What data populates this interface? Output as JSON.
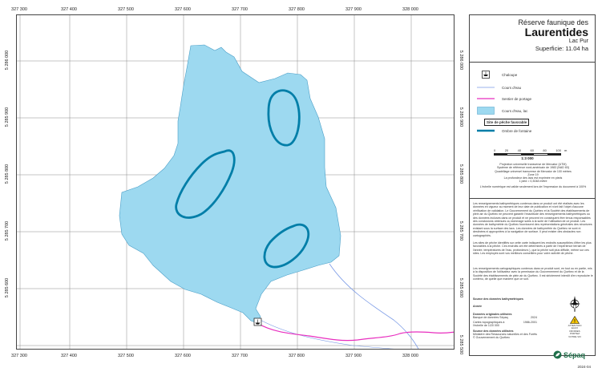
{
  "map": {
    "x_ticks": [
      "327 300",
      "327 400",
      "327 500",
      "327 600",
      "327 700",
      "327 800",
      "327 900",
      "328 000"
    ],
    "y_ticks": [
      "5 286 000",
      "5 285 900",
      "5 285 800",
      "5 285 700",
      "5 285 600"
    ],
    "bottom_right_tick": "5 285 500",
    "colors": {
      "lake_fill": "#9dd9f0",
      "lake_stroke": "#4a9ec7",
      "fish_zone": "#007ea8",
      "portage": "#e82fbf",
      "stream": "#7a9ae6"
    }
  },
  "header": {
    "line1": "Réserve faunique des",
    "line2": "Laurentides",
    "line3": "Lac Pur",
    "superficie_label": "Superficie:",
    "superficie_value": "11.04 ha"
  },
  "legend": {
    "items": [
      {
        "label": "Chaloupe",
        "icon": "boat-icon"
      },
      {
        "label": "Cours d'eau",
        "icon": "stream-line"
      },
      {
        "label": "Sentier de portage",
        "icon": "portage-line"
      },
      {
        "label": "Cours d'eau, lac",
        "icon": "lake-fill"
      },
      {
        "label": "Site de pêche favorable",
        "icon": "fishing-site-box"
      },
      {
        "label": "Ombre de fontaine",
        "icon": "fish-zone-line"
      }
    ]
  },
  "scale": {
    "ticks": [
      "0",
      "20",
      "40",
      "60",
      "80",
      "100"
    ],
    "unit": "m",
    "ratio": "1:3 000"
  },
  "projection": {
    "lines": [
      "Projection universelle transverse de Mercator (UTM)",
      "Système de référence nord-américain de 1983 (NAD 83)",
      "Quadrillage universel transverse de Mercator de 100 mètres",
      "Zone 19",
      "La profondeur des lacs est exprimée en pieds",
      "1 pied = 0,3048 mètre"
    ],
    "note": "L'échelle numérique est valide seulement lors de l'impression du document à 100%"
  },
  "paragraphs": [
    "Les renseignements bathymétriques contenus dans ce produit ont été réalisés avec les données en vigueur au moment de leur date de publication et n'ont fait l'objet d'aucune vérification de validation. Le Gouvernement du Québec et la Société des établissements de plein air du Québec ne peuvent garantir l'exactitude des renseignements bathymétriques ou des données incluses dans ce produit et ne peuvent en conséquent être tenus responsables des conclusions obtenues ou dommage subis à la suite de l'utilisation de ce produit. Les données de bathymétrie du Québec fournissent des représentations générales des structures existant sous la surface des lacs. Les données de bathymétrie du Québec ne sont ni destinées ni appropriées à la navigation de surface. Il peut exister des obstacles non cartographiés.",
    "Les sites de pêche identifiés sur cette carte indiquent les endroits susceptibles d'être les plus favorables à la pêche. Ces endroits ont été déterminés à partir de l'expérience terrain de l'année, températures de l'eau, profondeurs ), que la pêche soit plus difficile, même sur ces sites. Les employés sont vos meilleurs conseillers pour votre activité de pêche.",
    "Les renseignements cartographiques contenus dans ce produit sont, en tout ou en partie, mis à la disposition de l'utilisateur avec la permission du Gouvernement du Québec et de la Société des établissements de plein air du Québec. Il est strictement interdit d'en reproduire le contenu, de quelle que manière que ce soit."
  ],
  "sources": {
    "bathy_title": "Source des données bathymétriques",
    "annee_label": "Année",
    "original_title": "Données originales utilisées",
    "rows": [
      {
        "label": "Banque de données Sépaq",
        "year": "2024"
      },
      {
        "label": "Cartes topographiques à l'échelle de 1/20 000",
        "year": "1986-2001"
      }
    ],
    "used_title": "Source des données utilisées",
    "used_lines": [
      "Ministère des Ressources naturelles et des Forêts",
      "© Gouvernement du Québec"
    ]
  },
  "warning": {
    "text": "ATTENTION EAUX FROIDES PORTEZ VOTRE VFI"
  },
  "brand": {
    "name": "Sépaq",
    "date": "2024-04"
  }
}
